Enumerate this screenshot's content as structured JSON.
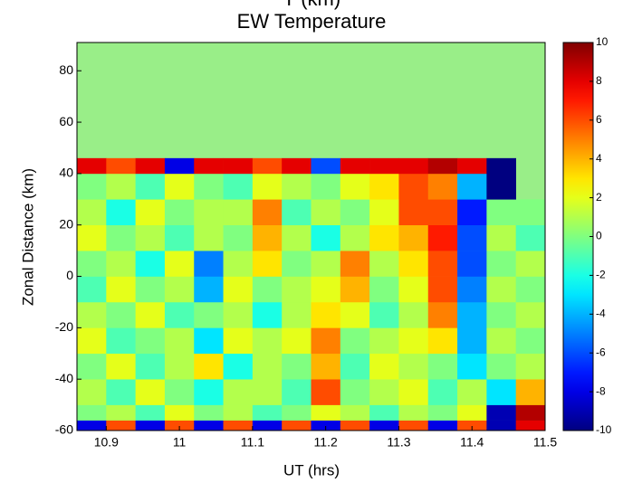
{
  "chart_data": {
    "type": "heatmap",
    "supertitle": "Y (km)",
    "title": "EW Temperature",
    "xlabel": "UT (hrs)",
    "ylabel": "Zonal Distance (km)",
    "xlim": [
      10.86,
      11.5
    ],
    "ylim": [
      -60,
      91
    ],
    "xticks": [
      10.9,
      11,
      11.1,
      11.2,
      11.3,
      11.4,
      11.5
    ],
    "yticks": [
      -60,
      -40,
      -20,
      0,
      20,
      40,
      60,
      80
    ],
    "x_edges": [
      10.86,
      10.9,
      10.94,
      10.98,
      11.02,
      11.06,
      11.1,
      11.14,
      11.18,
      11.22,
      11.26,
      11.3,
      11.34,
      11.38,
      11.42,
      11.46,
      11.5
    ],
    "y_edges": [
      -60,
      -56,
      -50,
      -40,
      -30,
      -20,
      -10,
      0,
      10,
      20,
      30,
      40,
      46,
      91
    ],
    "z": [
      [
        -8,
        6,
        -8,
        6,
        -8,
        6,
        -8,
        6,
        -8,
        6,
        -8,
        6,
        -8,
        6,
        -9,
        8
      ],
      [
        0,
        1,
        -1,
        2,
        0,
        1,
        -1,
        0,
        2,
        1,
        -1,
        1,
        0,
        2,
        -9,
        9
      ],
      [
        1,
        -1,
        2,
        0,
        -2,
        1,
        1,
        -1,
        6,
        0,
        1,
        2,
        -1,
        1,
        -3,
        4
      ],
      [
        0,
        2,
        -1,
        1,
        3,
        -2,
        1,
        0,
        4,
        -1,
        2,
        1,
        0,
        -3,
        0,
        1
      ],
      [
        2,
        -1,
        0,
        1,
        -3,
        2,
        1,
        2,
        5,
        0,
        1,
        2,
        3,
        -4,
        1,
        0
      ],
      [
        1,
        0,
        2,
        -1,
        0,
        1,
        -2,
        1,
        3,
        2,
        -1,
        1,
        5,
        -4,
        0,
        1
      ],
      [
        -1,
        2,
        0,
        1,
        -4,
        2,
        0,
        1,
        2,
        4,
        0,
        2,
        6,
        -5,
        1,
        0
      ],
      [
        0,
        1,
        -2,
        2,
        -5,
        1,
        3,
        0,
        1,
        5,
        1,
        3,
        6,
        -6,
        0,
        1
      ],
      [
        2,
        0,
        1,
        -1,
        1,
        0,
        4,
        1,
        -2,
        1,
        3,
        4,
        7,
        -6,
        1,
        -1
      ],
      [
        1,
        -2,
        2,
        0,
        1,
        1,
        5,
        -1,
        1,
        0,
        2,
        6,
        6,
        -7,
        0,
        0
      ],
      [
        0,
        1,
        -1,
        2,
        0,
        -1,
        2,
        1,
        0,
        2,
        3,
        6,
        5,
        -4,
        -10,
        null
      ],
      [
        8,
        6,
        8,
        -8,
        8,
        8,
        6,
        8,
        -6,
        8,
        8,
        8,
        9,
        8,
        -10,
        null
      ],
      [
        null,
        null,
        null,
        null,
        null,
        null,
        null,
        null,
        null,
        null,
        null,
        null,
        null,
        null,
        null,
        null
      ]
    ],
    "nan_color": "#99ee88",
    "colormap": "jet",
    "clim": [
      -10,
      10
    ],
    "cticks": [
      -10,
      -8,
      -6,
      -4,
      -2,
      0,
      2,
      4,
      6,
      8,
      10
    ]
  }
}
